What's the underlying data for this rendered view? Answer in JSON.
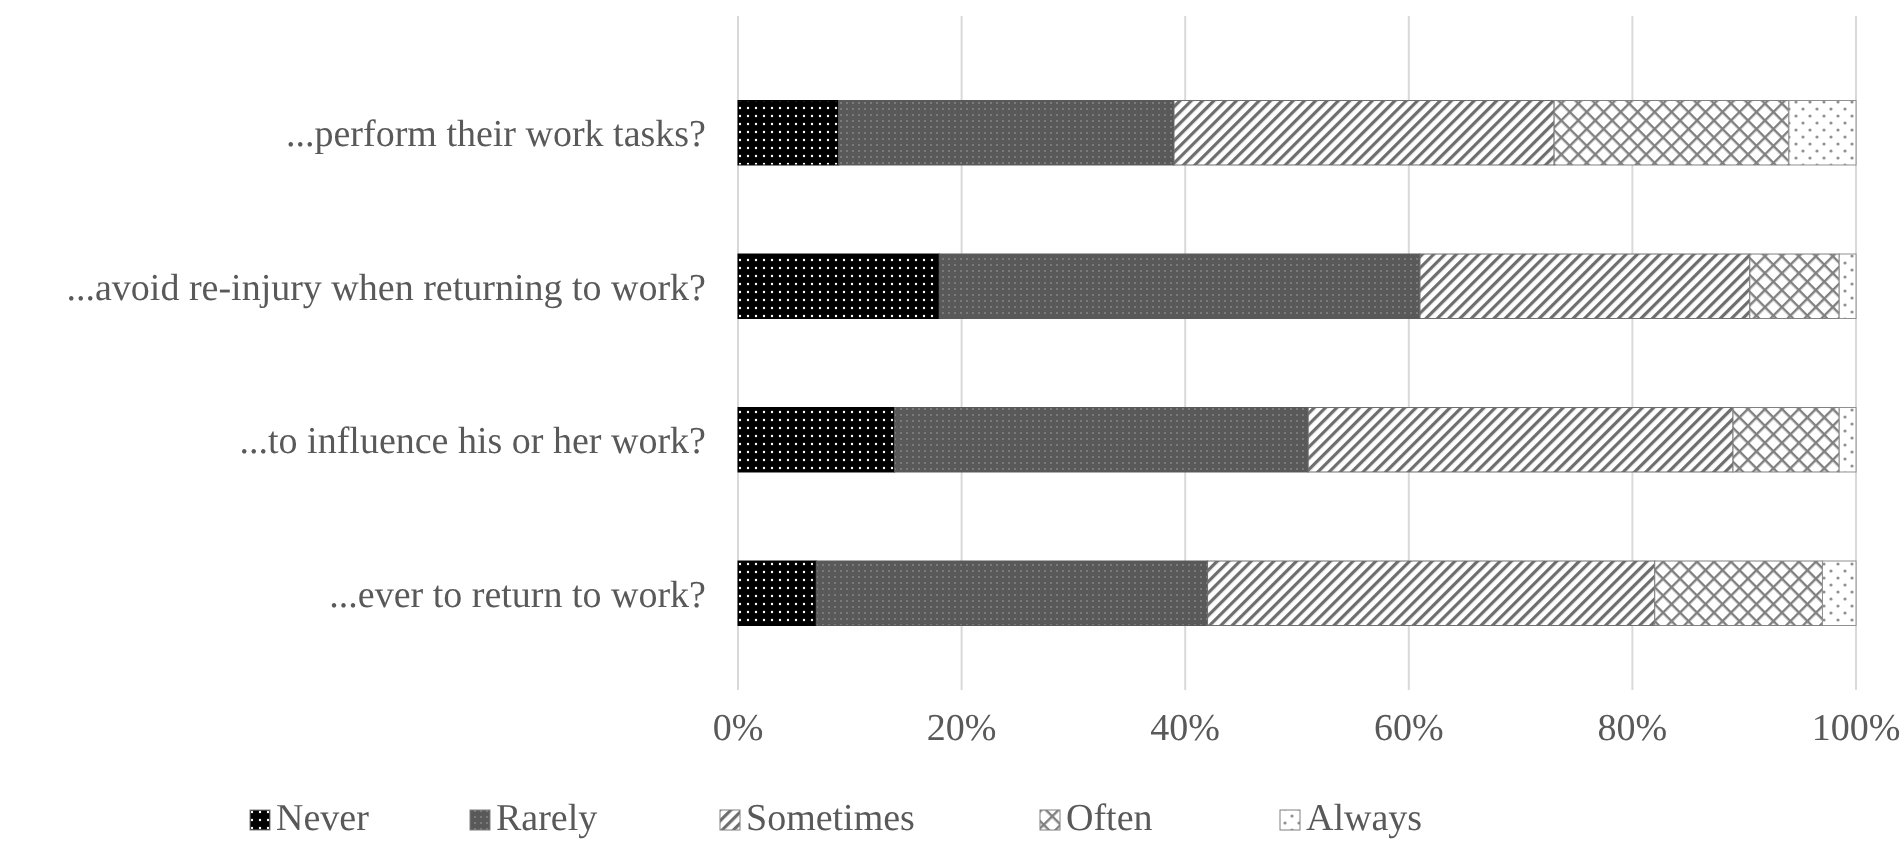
{
  "chart_data": {
    "type": "bar",
    "orientation": "horizontal",
    "stacked": true,
    "categories": [
      "...perform their work tasks?",
      "...avoid re-injury when returning to work?",
      "...to influence his or her work?",
      "...ever to return to work?"
    ],
    "series": [
      {
        "name": "Never",
        "color": "#000000",
        "values": [
          9,
          18,
          14,
          7
        ]
      },
      {
        "name": "Rarely",
        "color": "#595959",
        "values": [
          30,
          43,
          37,
          35
        ]
      },
      {
        "name": "Sometimes",
        "color": "#6e6e6e",
        "values": [
          34,
          29.5,
          38,
          40
        ]
      },
      {
        "name": "Often",
        "color": "#808080",
        "values": [
          21,
          8,
          9.5,
          15
        ]
      },
      {
        "name": "Always",
        "color": "#909090",
        "values": [
          6,
          1.5,
          1.5,
          3
        ]
      }
    ],
    "xlim": [
      0,
      100
    ],
    "xticks": [
      {
        "value": 0,
        "label": "0%"
      },
      {
        "value": 20,
        "label": "20%"
      },
      {
        "value": 40,
        "label": "40%"
      },
      {
        "value": 60,
        "label": "60%"
      },
      {
        "value": 80,
        "label": "80%"
      },
      {
        "value": 100,
        "label": "100%"
      }
    ],
    "grid": "x",
    "legend": "bottom"
  }
}
